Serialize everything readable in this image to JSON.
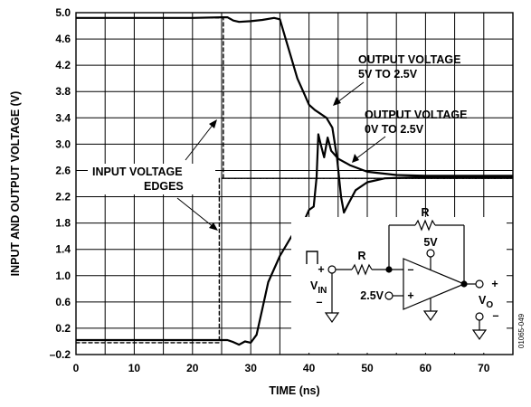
{
  "chart_data": {
    "type": "line",
    "xlabel": "TIME (ns)",
    "ylabel": "INPUT AND OUTPUT VOLTAGE (V)",
    "xlim": [
      0,
      75
    ],
    "ylim": [
      -0.2,
      5.0
    ],
    "x_ticks": [
      "0",
      "10",
      "20",
      "30",
      "40",
      "50",
      "60",
      "70"
    ],
    "y_ticks": [
      "–0.2",
      "0.2",
      "0.6",
      "1.0",
      "1.4",
      "1.8",
      "2.2",
      "2.6",
      "3.0",
      "3.4",
      "3.8",
      "4.2",
      "4.6",
      "5.0"
    ],
    "grid": true,
    "series": [
      {
        "style": "solid",
        "points": [
          [
            0,
            4.92
          ],
          [
            20,
            4.92
          ],
          [
            25,
            4.93
          ],
          [
            26,
            4.93
          ],
          [
            27,
            4.88
          ],
          [
            28,
            4.86
          ],
          [
            30,
            4.87
          ],
          [
            32,
            4.89
          ],
          [
            34,
            4.92
          ],
          [
            35,
            4.9
          ],
          [
            36,
            4.6
          ],
          [
            37,
            4.3
          ],
          [
            38,
            4.0
          ],
          [
            39,
            3.8
          ],
          [
            40,
            3.6
          ],
          [
            41,
            3.52
          ],
          [
            42,
            3.46
          ],
          [
            43,
            3.4
          ],
          [
            44,
            3.25
          ],
          [
            44.8,
            2.8
          ],
          [
            45.5,
            2.2
          ],
          [
            46,
            1.96
          ],
          [
            46.8,
            2.1
          ],
          [
            48,
            2.3
          ],
          [
            50,
            2.42
          ],
          [
            53,
            2.48
          ],
          [
            60,
            2.5
          ],
          [
            75,
            2.5
          ]
        ]
      },
      {
        "style": "solid",
        "points": [
          [
            0,
            0.02
          ],
          [
            25,
            0.02
          ],
          [
            26,
            0.02
          ],
          [
            27,
            -0.01
          ],
          [
            28,
            -0.05
          ],
          [
            29,
            0.0
          ],
          [
            30,
            -0.02
          ],
          [
            31,
            0.1
          ],
          [
            32,
            0.5
          ],
          [
            33,
            0.9
          ],
          [
            35,
            1.3
          ],
          [
            37,
            1.6
          ],
          [
            39,
            1.8
          ],
          [
            40,
            2.0
          ],
          [
            40.8,
            2.05
          ],
          [
            41.3,
            2.5
          ],
          [
            41.6,
            3.15
          ],
          [
            42,
            3.0
          ],
          [
            42.6,
            2.8
          ],
          [
            43.2,
            3.1
          ],
          [
            43.8,
            2.9
          ],
          [
            45,
            2.78
          ],
          [
            47,
            2.68
          ],
          [
            50,
            2.58
          ],
          [
            55,
            2.53
          ],
          [
            60,
            2.52
          ],
          [
            75,
            2.52
          ]
        ]
      },
      {
        "style": "dashed",
        "points": [
          [
            0,
            4.92
          ],
          [
            25.3,
            4.92
          ],
          [
            25.3,
            2.48
          ],
          [
            75,
            2.48
          ]
        ]
      },
      {
        "style": "dashed",
        "points": [
          [
            0,
            -0.02
          ],
          [
            24.6,
            -0.02
          ],
          [
            24.6,
            2.48
          ],
          [
            75,
            2.48
          ]
        ]
      }
    ],
    "annotations": {
      "output_5v_line1": "OUTPUT VOLTAGE",
      "output_5v_line2": "5V TO 2.5V",
      "output_0v_line1": "OUTPUT VOLTAGE",
      "output_0v_line2": "0V TO 2.5V",
      "input_line1": "INPUT VOLTAGE",
      "input_line2": "EDGES"
    },
    "schematic": {
      "r_feedback": "R",
      "r_input": "R",
      "supply": "5V",
      "bias": "2.5V",
      "vin_main": "V",
      "vin_sub": "IN",
      "vo_main": "V",
      "vo_sub": "O",
      "minus": "–",
      "plus": "+"
    },
    "figure_id": "01065-049"
  }
}
